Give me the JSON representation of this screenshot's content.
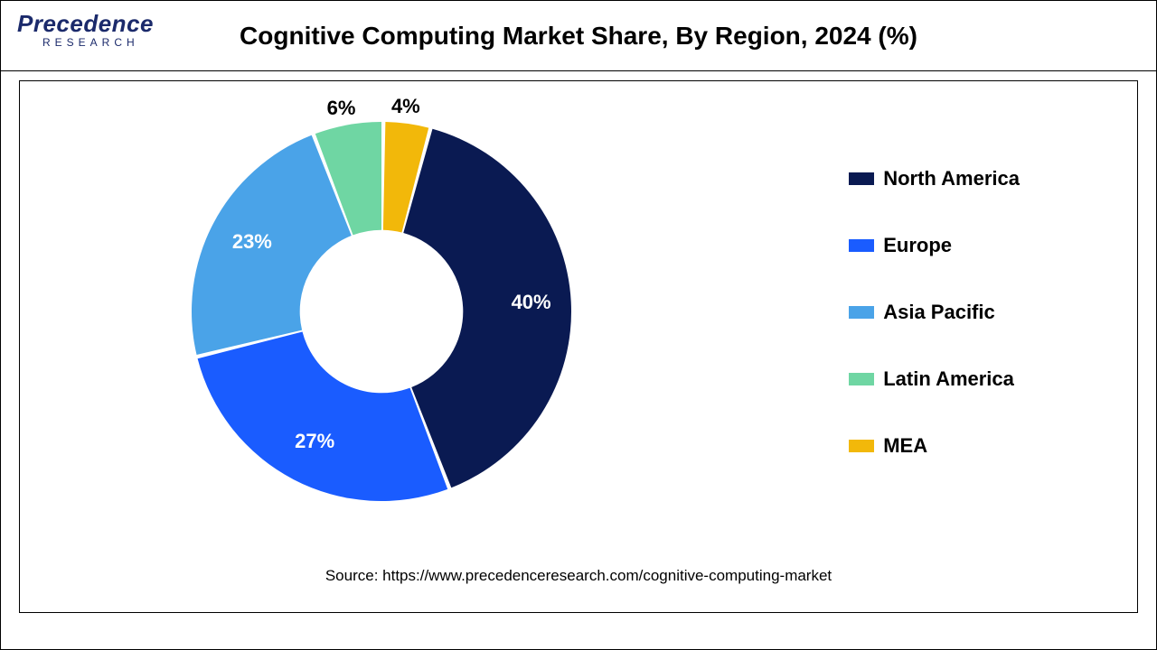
{
  "header": {
    "logo_main": "Precedence",
    "logo_sub": "RESEARCH",
    "title": "Cognitive Computing Market Share, By Region, 2024 (%)"
  },
  "chart": {
    "type": "donut",
    "background_color": "#ffffff",
    "inner_radius_ratio": 0.43,
    "gap_deg": 1.2,
    "start_angle_deg": -75,
    "slices": [
      {
        "label": "North America",
        "value": 40,
        "color": "#0a1a52",
        "pct_text": "40%",
        "label_color": "#ffffff"
      },
      {
        "label": "Europe",
        "value": 27,
        "color": "#1a5cff",
        "pct_text": "27%",
        "label_color": "#ffffff"
      },
      {
        "label": "Asia Pacific",
        "value": 23,
        "color": "#4aa3e8",
        "pct_text": "23%",
        "label_color": "#ffffff"
      },
      {
        "label": "Latin America",
        "value": 6,
        "color": "#6fd6a3",
        "pct_text": "6%",
        "label_color": "#000000"
      },
      {
        "label": "MEA",
        "value": 4,
        "color": "#f2b80a",
        "pct_text": "4%",
        "label_color": "#000000"
      }
    ],
    "pct_label_fontsize": 22,
    "pct_label_fontweight": "bold",
    "label_radius_ratio": 0.78
  },
  "legend": {
    "fontsize": 22,
    "fontweight": "bold",
    "swatch_w": 28,
    "swatch_h": 14
  },
  "source": {
    "text": "Source: https://www.precedenceresearch.com/cognitive-computing-market"
  }
}
